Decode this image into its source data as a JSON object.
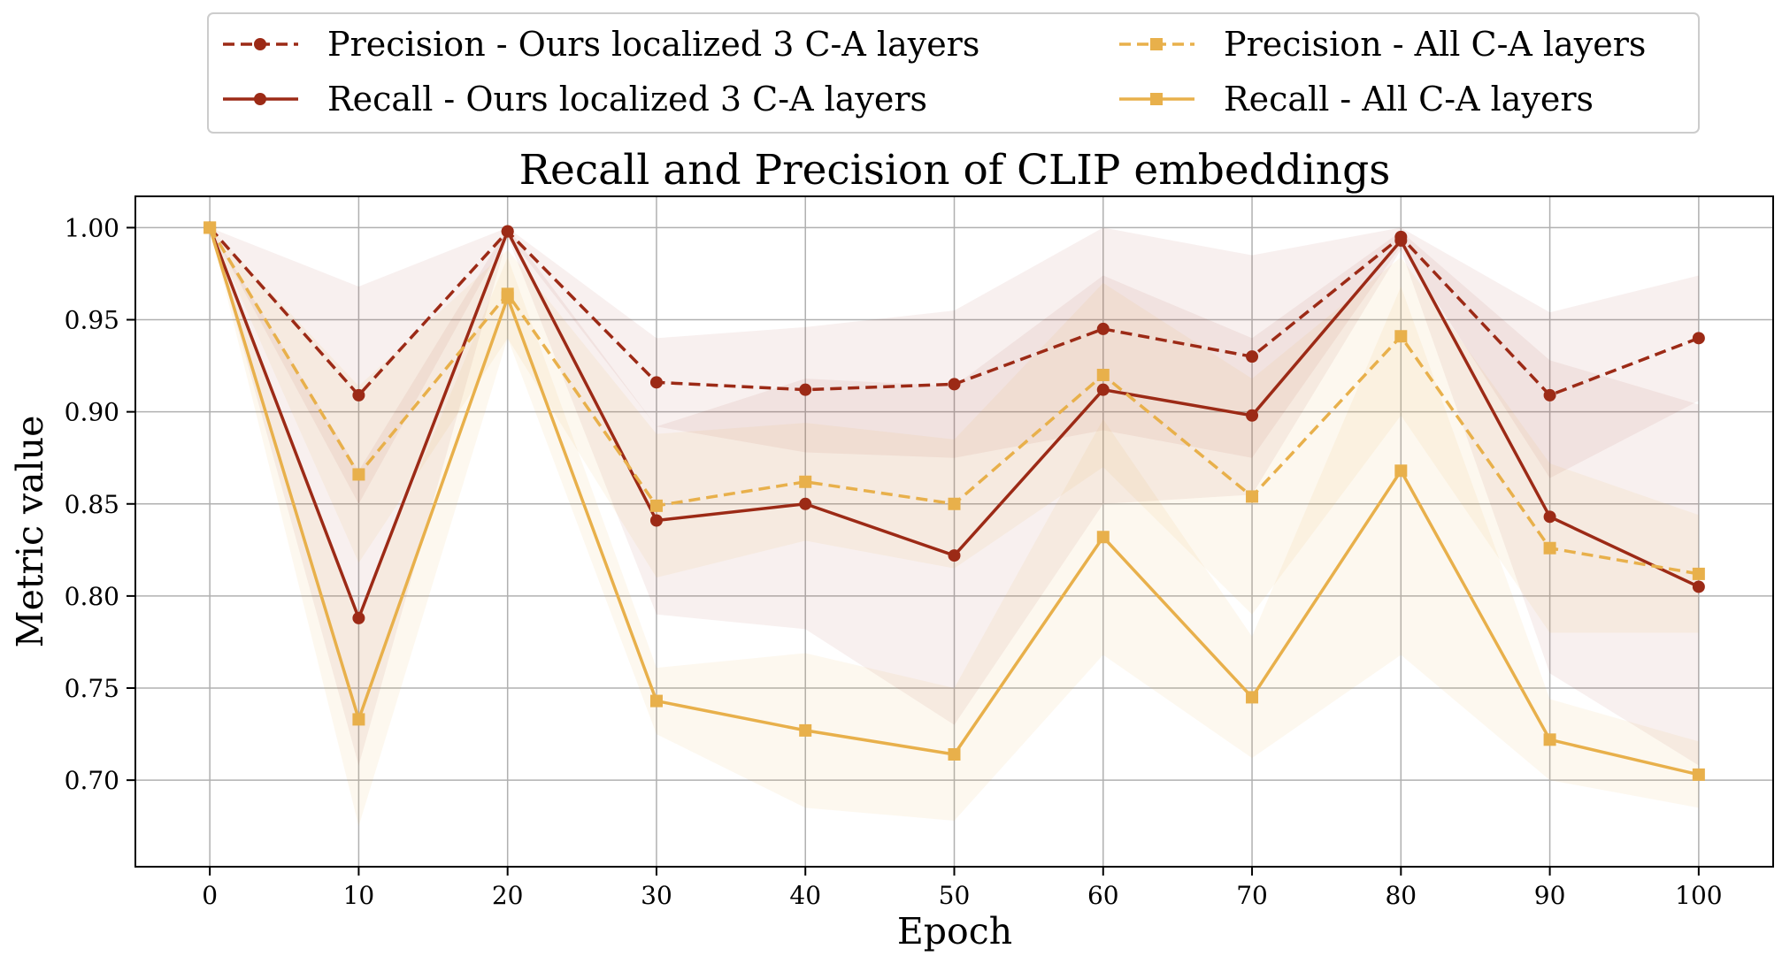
{
  "chart_data": {
    "type": "line",
    "title": "Recall and Precision of CLIP embeddings",
    "xlabel": "Epoch",
    "ylabel": "Metric value",
    "x": [
      0,
      10,
      20,
      30,
      40,
      50,
      60,
      70,
      80,
      90,
      100
    ],
    "xlim": [
      -5,
      105
    ],
    "ylim": [
      0.653,
      1.017
    ],
    "xticks": [
      "0",
      "10",
      "20",
      "30",
      "40",
      "50",
      "60",
      "70",
      "80",
      "90",
      "100"
    ],
    "yticks": [
      "0.70",
      "0.75",
      "0.80",
      "0.85",
      "0.90",
      "0.95",
      "1.00"
    ],
    "grid": true,
    "legend_position": "top",
    "series": [
      {
        "name": "Precision - Ours localized 3 C-A layers",
        "color": "#9c2a16",
        "linestyle": "dashed",
        "marker": "circle",
        "values": [
          1.0,
          0.909,
          0.998,
          0.916,
          0.912,
          0.915,
          0.945,
          0.93,
          0.995,
          0.909,
          0.94
        ],
        "lower": [
          1.0,
          0.85,
          0.996,
          0.892,
          0.878,
          0.875,
          0.89,
          0.875,
          0.99,
          0.864,
          0.906
        ],
        "upper": [
          1.0,
          0.968,
          1.0,
          0.94,
          0.946,
          0.955,
          1.0,
          0.985,
          1.0,
          0.954,
          0.974
        ]
      },
      {
        "name": "Recall - Ours localized 3 C-A layers",
        "color": "#9c2a16",
        "linestyle": "solid",
        "marker": "circle",
        "values": [
          1.0,
          0.788,
          0.998,
          0.841,
          0.85,
          0.822,
          0.912,
          0.898,
          0.993,
          0.843,
          0.805
        ],
        "lower": [
          1.0,
          0.708,
          0.995,
          0.79,
          0.782,
          0.73,
          0.85,
          0.855,
          0.988,
          0.758,
          0.708
        ],
        "upper": [
          1.0,
          0.868,
          1.0,
          0.892,
          0.918,
          0.914,
          0.974,
          0.94,
          0.998,
          0.928,
          0.904
        ]
      },
      {
        "name": "Precision - All C-A layers",
        "color": "#e8b04b",
        "linestyle": "dashed",
        "marker": "square",
        "values": [
          1.0,
          0.866,
          0.964,
          0.849,
          0.862,
          0.85,
          0.92,
          0.854,
          0.941,
          0.826,
          0.812
        ],
        "lower": [
          1.0,
          0.818,
          0.94,
          0.81,
          0.83,
          0.815,
          0.87,
          0.79,
          0.898,
          0.78,
          0.78
        ],
        "upper": [
          1.0,
          0.914,
          0.988,
          0.888,
          0.894,
          0.885,
          0.97,
          0.918,
          0.984,
          0.872,
          0.844
        ]
      },
      {
        "name": "Recall - All C-A layers",
        "color": "#e8b04b",
        "linestyle": "solid",
        "marker": "square",
        "values": [
          1.0,
          0.733,
          0.962,
          0.743,
          0.727,
          0.714,
          0.832,
          0.745,
          0.868,
          0.722,
          0.703
        ],
        "lower": [
          1.0,
          0.675,
          0.94,
          0.725,
          0.685,
          0.678,
          0.768,
          0.712,
          0.768,
          0.7,
          0.685
        ],
        "upper": [
          1.0,
          0.79,
          0.984,
          0.761,
          0.769,
          0.75,
          0.896,
          0.778,
          0.968,
          0.744,
          0.721
        ]
      }
    ]
  }
}
